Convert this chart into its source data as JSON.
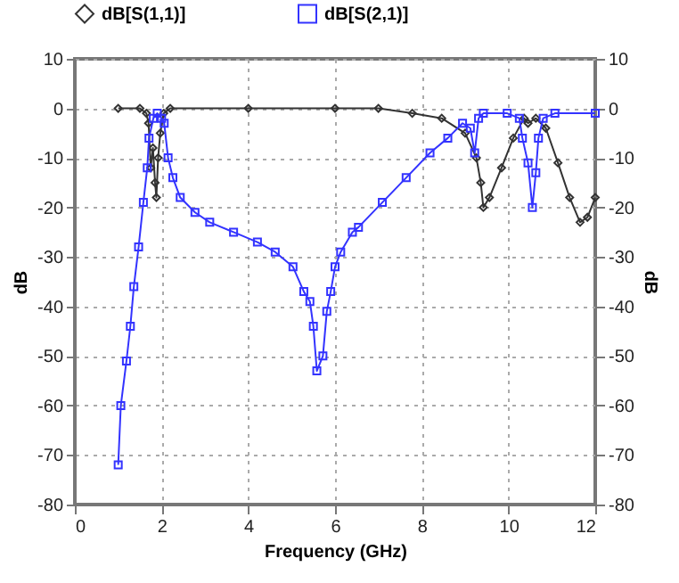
{
  "chart_data": {
    "type": "line",
    "xlabel": "Frequency (GHz)",
    "ylabel": "dB",
    "y2label": "dB",
    "xlim": [
      0,
      12
    ],
    "xticks": [
      0,
      2,
      4,
      6,
      8,
      10,
      12
    ],
    "ylim": [
      -80,
      10
    ],
    "yticks": [
      -80,
      -70,
      -60,
      -50,
      -40,
      -30,
      -20,
      -10,
      0,
      10
    ],
    "y2lim": [
      -80,
      10
    ],
    "y2ticks": [
      -80,
      -70,
      -60,
      -50,
      -40,
      -30,
      -20,
      -10,
      0,
      10
    ],
    "grid": true,
    "legend": "top",
    "line_style": "solid",
    "series": [
      {
        "name": "dB[S(1,1)]",
        "color": "#333333",
        "marker": "diamond",
        "x": [
          1.0,
          1.5,
          1.65,
          1.7,
          1.75,
          1.8,
          1.85,
          1.88,
          1.92,
          1.97,
          2.05,
          2.2,
          4,
          6,
          7,
          7.78,
          8.46,
          9.0,
          9.26,
          9.36,
          9.42,
          9.56,
          9.84,
          10.11,
          10.36,
          10.45,
          10.63,
          10.86,
          11.14,
          11.41,
          11.65,
          11.82,
          12
        ],
        "values": [
          0,
          0,
          -1,
          -3,
          -12,
          -8,
          -15,
          -18,
          -10,
          -5,
          -1,
          0,
          0,
          0,
          0,
          -1,
          -2,
          -5,
          -10,
          -15,
          -20,
          -18,
          -12,
          -6,
          -2,
          -3,
          -2,
          -4,
          -11,
          -18,
          -23,
          -22,
          -18
        ]
      },
      {
        "name": "dB[S(2,1)]",
        "color": "#3333ff",
        "marker": "square",
        "axis": "y2",
        "x": [
          1.0,
          1.06,
          1.19,
          1.28,
          1.36,
          1.47,
          1.58,
          1.67,
          1.71,
          1.81,
          1.9,
          2.0,
          2.06,
          2.15,
          2.26,
          2.43,
          2.77,
          3.11,
          3.66,
          4.21,
          4.62,
          5.03,
          5.28,
          5.42,
          5.5,
          5.58,
          5.72,
          5.81,
          5.9,
          6.0,
          6.13,
          6.4,
          6.54,
          7.09,
          7.64,
          8.19,
          8.6,
          8.94,
          9.12,
          9.22,
          9.31,
          9.42,
          9.97,
          10.25,
          10.32,
          10.45,
          10.55,
          10.63,
          10.69,
          10.8,
          11.07,
          12
        ],
        "values": [
          -72,
          -60,
          -51,
          -44,
          -36,
          -28,
          -19,
          -12,
          -6,
          -2,
          -1,
          -2,
          -3,
          -10,
          -14,
          -18,
          -21,
          -23,
          -25,
          -27,
          -29,
          -32,
          -37,
          -39,
          -44,
          -53,
          -50,
          -41,
          -37,
          -32,
          -29,
          -25,
          -24,
          -19,
          -14,
          -9,
          -6,
          -3,
          -4,
          -9,
          -2,
          -1,
          -1,
          -2,
          -6,
          -11,
          -20,
          -13,
          -6,
          -2,
          -1,
          -1
        ]
      }
    ]
  }
}
